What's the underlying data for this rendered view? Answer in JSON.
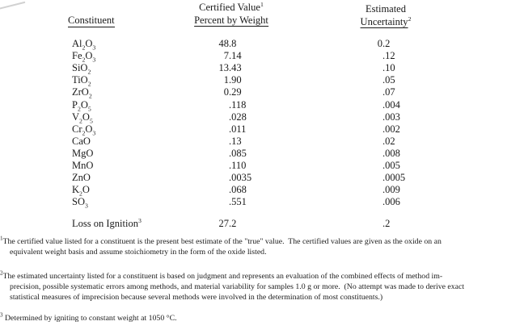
{
  "page": {
    "background": "#ffffff",
    "text_color": "#1a1a1a"
  },
  "table": {
    "col_headers": {
      "constituent": "Constituent",
      "value_line1": "Certified Value",
      "value_line1_sup": "1",
      "value_line2": "Percent by Weight",
      "uncertainty_line1": "Estimated",
      "uncertainty_line2": "Uncertainty",
      "uncertainty_line2_sup": "2"
    },
    "rows": [
      {
        "name": "Al~2~O~3~",
        "value": "48.8",
        "uncertainty": "0.2"
      },
      {
        "name": "Fe~2~O~3~",
        "value": "7.14",
        "uncertainty": ".12"
      },
      {
        "name": "SiO~2~",
        "value": "13.43",
        "uncertainty": ".10"
      },
      {
        "name": "TiO~2~",
        "value": "1.90",
        "uncertainty": ".05"
      },
      {
        "name": "ZrO~2~",
        "value": "0.29",
        "uncertainty": ".07"
      },
      {
        "name": "P~2~O~5~",
        "value": ".118",
        "uncertainty": ".004"
      },
      {
        "name": "V~2~O~5~",
        "value": ".028",
        "uncertainty": ".003"
      },
      {
        "name": "Cr~2~O~3~",
        "value": ".011",
        "uncertainty": ".002"
      },
      {
        "name": "CaO",
        "value": ".13",
        "uncertainty": ".02"
      },
      {
        "name": "MgO",
        "value": ".085",
        "uncertainty": ".008"
      },
      {
        "name": "MnO",
        "value": ".110",
        "uncertainty": ".005"
      },
      {
        "name": "ZnO",
        "value": ".0035",
        "uncertainty": ".0005"
      },
      {
        "name": "K~2~O",
        "value": ".068",
        "uncertainty": ".009"
      },
      {
        "name": "SO~3~",
        "value": ".551",
        "uncertainty": ".006"
      },
      {
        "name": "Loss on Ignition^3^",
        "value": "27.2",
        "uncertainty": ".2",
        "gap_before": true
      }
    ]
  },
  "footnotes": [
    {
      "marker": "1",
      "lines": [
        "The certified value listed for a constituent is the present best estimate of the \"true\" value.  The certified values are given as the oxide on an",
        "equivalent weight basis and assume stoichiometry in the form of the oxide listed."
      ]
    },
    {
      "marker": "2",
      "lines": [
        "The estimated uncertainty listed for a constituent is based on judgment and represents an evaluation of the combined effects of method im-",
        "precision, possible systematic errors among methods, and material variability for samples 1.0 g or more.  (No attempt was made to derive exact",
        "statistical measures of imprecision because several methods were involved in the determination of most constituents.)"
      ]
    },
    {
      "marker": "3",
      "lines": [
        " Determined by igniting to constant weight at 1050 °C."
      ]
    }
  ]
}
